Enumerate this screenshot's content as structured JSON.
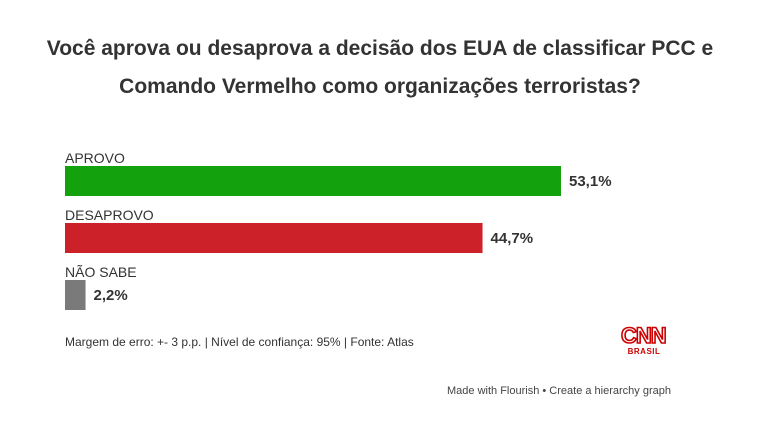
{
  "title": "Você aprova ou desaprova a decisão dos EUA de classificar PCC e Comando Vermelho como organizações terroristas?",
  "chart_data": {
    "type": "bar",
    "orientation": "horizontal",
    "title": "Você aprova ou desaprova a decisão dos EUA de classificar PCC e Comando Vermelho como organizações terroristas?",
    "categories": [
      "APROVO",
      "DESAPROVO",
      "NÃO SABE"
    ],
    "values": [
      53.1,
      44.7,
      2.2
    ],
    "value_labels": [
      "53,1%",
      "44,7%",
      "2,2%"
    ],
    "colors": [
      "#13a10e",
      "#cc2128",
      "#7a7a7a"
    ],
    "xlim": [
      0,
      53.1
    ],
    "grid": false,
    "legend": "none"
  },
  "footnote": "Margem de erro: +- 3 p.p. | Nível de confiança: 95% | Fonte: Atlas",
  "logo": {
    "main": "CNN",
    "sub": "BRASIL"
  },
  "credit": {
    "made_with": "Made with Flourish",
    "separator": " • ",
    "create": "Create a hierarchy graph"
  }
}
